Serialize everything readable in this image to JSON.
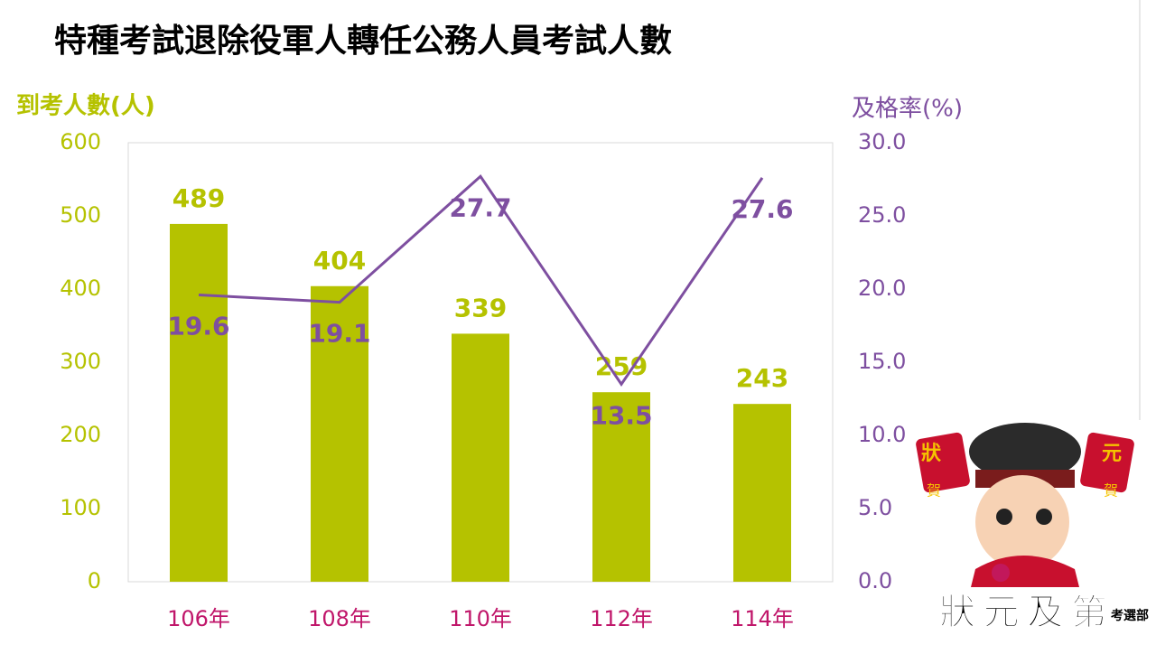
{
  "chart_data": {
    "type": "combo",
    "title": "特種考試退除役軍人轉任公務人員考試人數",
    "y_label": "到考人數(人)",
    "y2_label": "及格率(%)",
    "categories": [
      "106年",
      "108年",
      "110年",
      "112年",
      "114年"
    ],
    "series": [
      {
        "kind": "bar",
        "color": "#b5c200",
        "values": [
          489,
          404,
          339,
          259,
          243
        ]
      },
      {
        "kind": "line",
        "axis": "y2",
        "color": "#7e4fa0",
        "values": [
          19.6,
          19.1,
          27.7,
          13.5,
          27.6
        ]
      }
    ],
    "ylim": [
      0,
      600
    ],
    "yticks": [
      0,
      100,
      200,
      300,
      400,
      500,
      600
    ],
    "y2lim": [
      0,
      30
    ],
    "y2ticks": [
      {
        "value": 0,
        "label": "0.0"
      },
      {
        "value": 5,
        "label": "5.0"
      },
      {
        "value": 10,
        "label": "10.0"
      },
      {
        "value": 15,
        "label": "15.0"
      },
      {
        "value": 20,
        "label": "20.0"
      },
      {
        "value": 25,
        "label": "25.0"
      },
      {
        "value": 30,
        "label": "30.0"
      }
    ],
    "category_color": "#c0166a"
  },
  "logo": {
    "text": "狀元及第",
    "sub": "考選部",
    "badges": [
      "狀",
      "元",
      "賀",
      "賀"
    ]
  }
}
